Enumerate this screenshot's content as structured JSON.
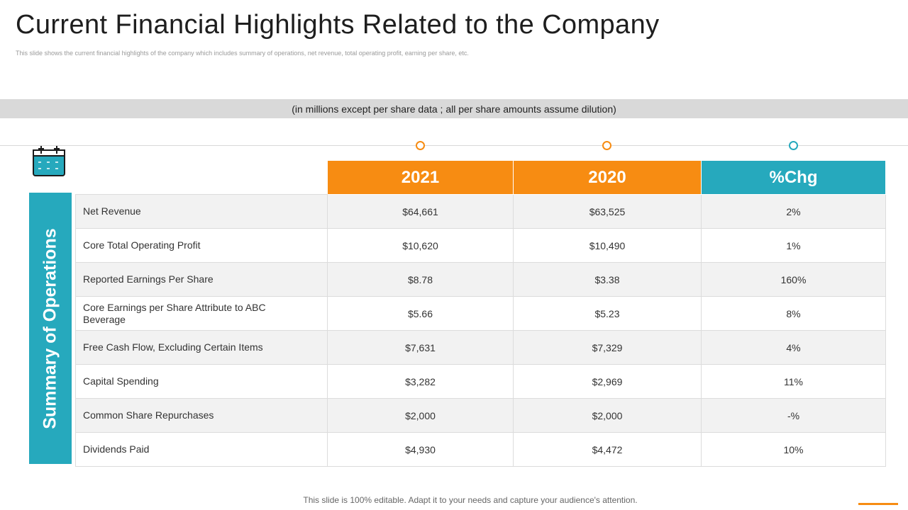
{
  "title": "Current Financial Highlights Related to the Company",
  "subtitle": "This slide shows the current financial highlights of the company which includes summary of operations, net revenue, total operating profit, earning per share, etc.",
  "note": "(in millions except per share data ; all per share amounts assume dilution)",
  "side_label": "Summary of Operations",
  "icons": {
    "calendar": "calendar-icon"
  },
  "colors": {
    "orange": "#f78c12",
    "teal": "#26a9bd",
    "band": "#d9d9d9"
  },
  "table": {
    "headers": [
      "2021",
      "2020",
      "%Chg"
    ],
    "rows": [
      {
        "label": "Net Revenue",
        "y2021": "$64,661",
        "y2020": "$63,525",
        "chg": "2%"
      },
      {
        "label": "Core Total Operating Profit",
        "y2021": "$10,620",
        "y2020": "$10,490",
        "chg": "1%"
      },
      {
        "label": "Reported Earnings Per Share",
        "y2021": "$8.78",
        "y2020": "$3.38",
        "chg": "160%"
      },
      {
        "label": "Core Earnings per Share Attribute to ABC Beverage",
        "y2021": "$5.66",
        "y2020": "$5.23",
        "chg": "8%"
      },
      {
        "label": "Free Cash Flow, Excluding Certain Items",
        "y2021": "$7,631",
        "y2020": "$7,329",
        "chg": "4%"
      },
      {
        "label": "Capital Spending",
        "y2021": "$3,282",
        "y2020": "$2,969",
        "chg": "11%"
      },
      {
        "label": "Common Share Repurchases",
        "y2021": "$2,000",
        "y2020": "$2,000",
        "chg": "-%"
      },
      {
        "label": "Dividends Paid",
        "y2021": "$4,930",
        "y2020": "$4,472",
        "chg": "10%"
      }
    ]
  },
  "footer": "This slide is 100% editable. Adapt it to your needs and capture your audience's attention."
}
